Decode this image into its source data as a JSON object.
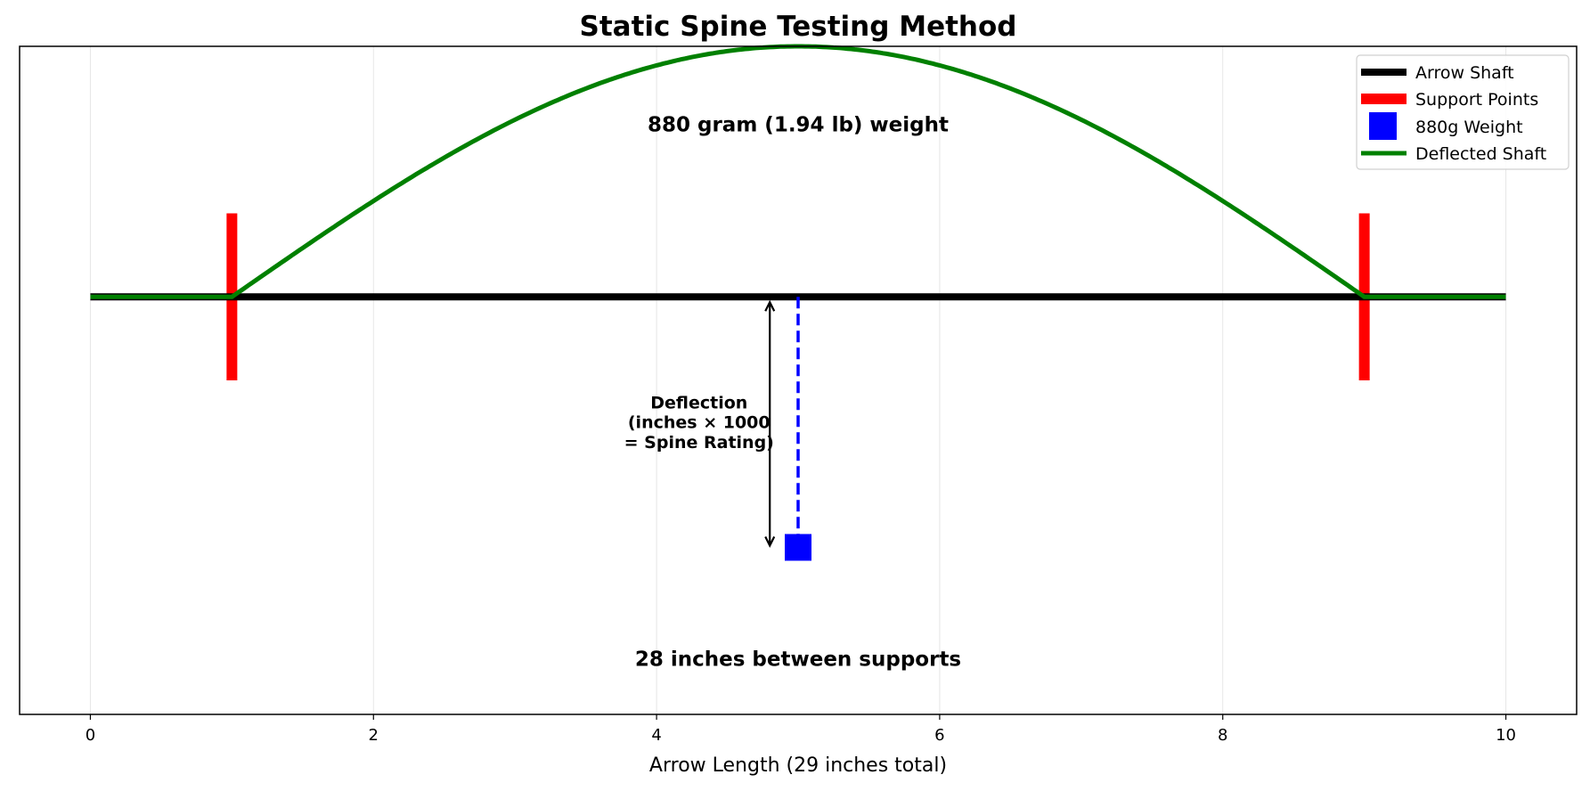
{
  "chart_data": {
    "type": "line",
    "title": "Static Spine Testing Method",
    "xlabel": "Arrow Length (29 inches total)",
    "ylabel": "",
    "xlim": [
      -0.5,
      10.5
    ],
    "ylim": [
      -1.5,
      0.9
    ],
    "xticks": [
      0,
      2,
      4,
      6,
      8,
      10
    ],
    "yticks_visible": false,
    "grid": "vertical",
    "legend_placement": "top-right",
    "series": [
      {
        "name": "Arrow Shaft",
        "type": "line",
        "color": "#000000",
        "x": [
          0,
          10
        ],
        "y": [
          0,
          0
        ]
      },
      {
        "name": "Support Points",
        "type": "vlines",
        "color": "#ff0000",
        "x": [
          1,
          9
        ],
        "ymin": -0.3,
        "ymax": 0.3
      },
      {
        "name": "880g Weight",
        "type": "marker",
        "marker": "square",
        "color": "#0000ff",
        "x": [
          5
        ],
        "y": [
          -0.9
        ]
      },
      {
        "name": "Deflected Shaft",
        "type": "curve",
        "color": "#008000",
        "description_formula": "0 outside supports; 0.9*sin(pi*(x-1)/8) between x=1 and x=9",
        "x_range": [
          0,
          10
        ],
        "peak": 0.9
      }
    ],
    "dashed_line": {
      "color": "#0000ff",
      "x": 5,
      "y": [
        0,
        -0.9
      ]
    },
    "arrow": {
      "x": 4.8,
      "y": [
        0,
        -0.9
      ],
      "color": "#000000"
    },
    "annotations": [
      {
        "text": "880 gram (1.94 lb) weight",
        "x": 5,
        "y": 0.62
      },
      {
        "text": "Deflection\n(inches × 1000\n= Spine Rating)",
        "lines": [
          "Deflection",
          "(inches × 1000",
          "= Spine Rating)"
        ],
        "x": 4.3,
        "y": -0.45
      },
      {
        "text": "28 inches between supports",
        "x": 5,
        "y": -1.3
      }
    ]
  }
}
